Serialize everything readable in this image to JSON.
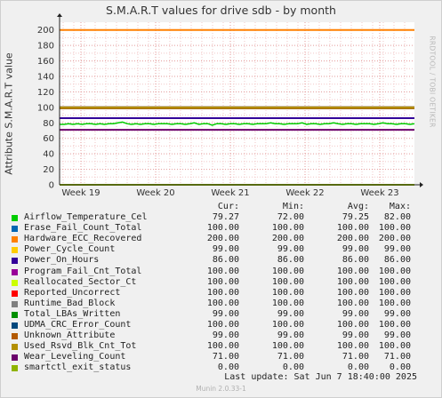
{
  "title": "S.M.A.R.T values for drive sdb - by month",
  "side_credit": "RRDTOOL / TOBI OETIKER",
  "legend_headers": {
    "cur": "Cur:",
    "min": "Min:",
    "avg": "Avg:",
    "max": "Max:"
  },
  "last_update": "Last update:  Sat Jun  7 18:40:00 2025",
  "footer": "Munin 2.0.33-1",
  "chart_data": {
    "type": "line",
    "ylabel": "Attribute S.M.A.R.T value",
    "ylim": [
      0,
      210
    ],
    "yticks": [
      0,
      20,
      40,
      60,
      80,
      100,
      120,
      140,
      160,
      180,
      200
    ],
    "xticks": [
      "Week 19",
      "Week 20",
      "Week 21",
      "Week 22",
      "Week 23"
    ],
    "grid": true,
    "series": [
      {
        "name": "Airflow_Temperature_Cel",
        "color": "#00cc00",
        "cur": "79.27",
        "min": "72.00",
        "avg": "79.25",
        "max": "82.00",
        "values": [
          78,
          78,
          79,
          78,
          79,
          78,
          79,
          79,
          78,
          79,
          78,
          79,
          79,
          80,
          81,
          79,
          78,
          79,
          78,
          79,
          79,
          78,
          79,
          79,
          79,
          78,
          79,
          79,
          78,
          79,
          80,
          78,
          79,
          79,
          77,
          79,
          79,
          78,
          79,
          79,
          78,
          79,
          79,
          78,
          79,
          79,
          79,
          80,
          79,
          79,
          78,
          79,
          79,
          79,
          80,
          78,
          79,
          79,
          78,
          79,
          79,
          80,
          79,
          78,
          79,
          79,
          78,
          79,
          79,
          79,
          78,
          79,
          80,
          79,
          79,
          78,
          79,
          79,
          78,
          79
        ]
      },
      {
        "name": "Erase_Fail_Count_Total",
        "color": "#0066b3",
        "cur": "100.00",
        "min": "100.00",
        "avg": "100.00",
        "max": "100.00",
        "values": [
          100
        ]
      },
      {
        "name": "Hardware_ECC_Recovered",
        "color": "#ff8000",
        "cur": "200.00",
        "min": "200.00",
        "avg": "200.00",
        "max": "200.00",
        "values": [
          200
        ]
      },
      {
        "name": "Power_Cycle_Count",
        "color": "#ffcc00",
        "cur": "99.00",
        "min": "99.00",
        "avg": "99.00",
        "max": "99.00",
        "values": [
          99
        ]
      },
      {
        "name": "Power_On_Hours",
        "color": "#330099",
        "cur": "86.00",
        "min": "86.00",
        "avg": "86.00",
        "max": "86.00",
        "values": [
          86
        ]
      },
      {
        "name": "Program_Fail_Cnt_Total",
        "color": "#990099",
        "cur": "100.00",
        "min": "100.00",
        "avg": "100.00",
        "max": "100.00",
        "values": [
          100
        ]
      },
      {
        "name": "Reallocated_Sector_Ct",
        "color": "#ccff00",
        "cur": "100.00",
        "min": "100.00",
        "avg": "100.00",
        "max": "100.00",
        "values": [
          100
        ]
      },
      {
        "name": "Reported_Uncorrect",
        "color": "#ff0000",
        "cur": "100.00",
        "min": "100.00",
        "avg": "100.00",
        "max": "100.00",
        "values": [
          100
        ]
      },
      {
        "name": "Runtime_Bad_Block",
        "color": "#808080",
        "cur": "100.00",
        "min": "100.00",
        "avg": "100.00",
        "max": "100.00",
        "values": [
          100
        ]
      },
      {
        "name": "Total_LBAs_Written",
        "color": "#008f00",
        "cur": "99.00",
        "min": "99.00",
        "avg": "99.00",
        "max": "99.00",
        "values": [
          99
        ]
      },
      {
        "name": "UDMA_CRC_Error_Count",
        "color": "#00487d",
        "cur": "100.00",
        "min": "100.00",
        "avg": "100.00",
        "max": "100.00",
        "values": [
          100
        ]
      },
      {
        "name": "Unknown_Attribute",
        "color": "#b35a00",
        "cur": "99.00",
        "min": "99.00",
        "avg": "99.00",
        "max": "99.00",
        "values": [
          99
        ]
      },
      {
        "name": "Used_Rsvd_Blk_Cnt_Tot",
        "color": "#b38f00",
        "cur": "100.00",
        "min": "100.00",
        "avg": "100.00",
        "max": "100.00",
        "values": [
          100
        ]
      },
      {
        "name": "Wear_Leveling_Count",
        "color": "#6b006b",
        "cur": "71.00",
        "min": "71.00",
        "avg": "71.00",
        "max": "71.00",
        "values": [
          71
        ]
      },
      {
        "name": "smartctl_exit_status",
        "color": "#8fb300",
        "cur": "0.00",
        "min": "0.00",
        "avg": "0.00",
        "max": "0.00",
        "values": [
          0
        ]
      }
    ]
  }
}
